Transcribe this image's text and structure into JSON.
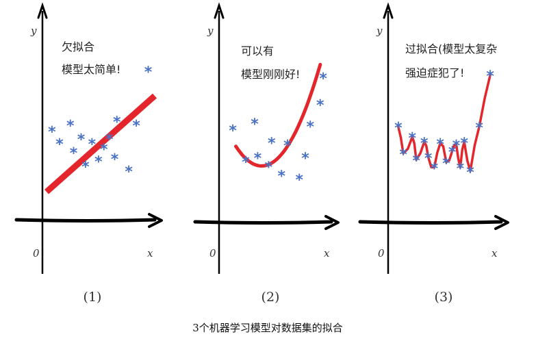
{
  "figure": {
    "caption": "3个机器学习模型对数据集的拟合",
    "axis": {
      "origin": "0",
      "x": "x",
      "y": "y"
    },
    "colors": {
      "axis": "#000000",
      "fit": "#e4262c",
      "point": "#4a72c4",
      "text": "#222222"
    },
    "point_glyph": "*",
    "panels": [
      {
        "label": "(1)",
        "note": [
          "欠拟合",
          "模型太简单!"
        ],
        "fit": "linear",
        "points": [
          {
            "x": 0.05,
            "y": 0.5
          },
          {
            "x": 0.12,
            "y": 0.4
          },
          {
            "x": 0.22,
            "y": 0.55
          },
          {
            "x": 0.25,
            "y": 0.33
          },
          {
            "x": 0.32,
            "y": 0.44
          },
          {
            "x": 0.36,
            "y": 0.22
          },
          {
            "x": 0.42,
            "y": 0.4
          },
          {
            "x": 0.48,
            "y": 0.26
          },
          {
            "x": 0.53,
            "y": 0.36
          },
          {
            "x": 0.58,
            "y": 0.44
          },
          {
            "x": 0.63,
            "y": 0.28
          },
          {
            "x": 0.65,
            "y": 0.58
          },
          {
            "x": 0.76,
            "y": 0.18
          },
          {
            "x": 0.83,
            "y": 0.55
          },
          {
            "x": 0.94,
            "y": 0.98
          }
        ]
      },
      {
        "label": "(2)",
        "note": [
          "可以有",
          "模型刚刚好!"
        ],
        "fit": "quadratic",
        "points": [
          {
            "x": 0.07,
            "y": 0.52
          },
          {
            "x": 0.2,
            "y": 0.27
          },
          {
            "x": 0.29,
            "y": 0.57
          },
          {
            "x": 0.32,
            "y": 0.3
          },
          {
            "x": 0.43,
            "y": 0.23
          },
          {
            "x": 0.46,
            "y": 0.42
          },
          {
            "x": 0.56,
            "y": 0.16
          },
          {
            "x": 0.62,
            "y": 0.4
          },
          {
            "x": 0.74,
            "y": 0.13
          },
          {
            "x": 0.8,
            "y": 0.3
          },
          {
            "x": 0.85,
            "y": 0.55
          },
          {
            "x": 0.95,
            "y": 0.72
          },
          {
            "x": 0.98,
            "y": 0.93
          }
        ]
      },
      {
        "label": "(3)",
        "note": [
          "过拟合(模型太复杂",
          "强迫症犯了!"
        ],
        "fit": "overfit",
        "points": [
          {
            "x": 0.04,
            "y": 0.54
          },
          {
            "x": 0.09,
            "y": 0.33
          },
          {
            "x": 0.18,
            "y": 0.46
          },
          {
            "x": 0.22,
            "y": 0.28
          },
          {
            "x": 0.3,
            "y": 0.42
          },
          {
            "x": 0.34,
            "y": 0.3
          },
          {
            "x": 0.4,
            "y": 0.22
          },
          {
            "x": 0.46,
            "y": 0.41
          },
          {
            "x": 0.52,
            "y": 0.26
          },
          {
            "x": 0.58,
            "y": 0.35
          },
          {
            "x": 0.62,
            "y": 0.4
          },
          {
            "x": 0.66,
            "y": 0.22
          },
          {
            "x": 0.7,
            "y": 0.42
          },
          {
            "x": 0.76,
            "y": 0.19
          },
          {
            "x": 0.85,
            "y": 0.54
          },
          {
            "x": 0.96,
            "y": 0.95
          }
        ]
      }
    ]
  }
}
